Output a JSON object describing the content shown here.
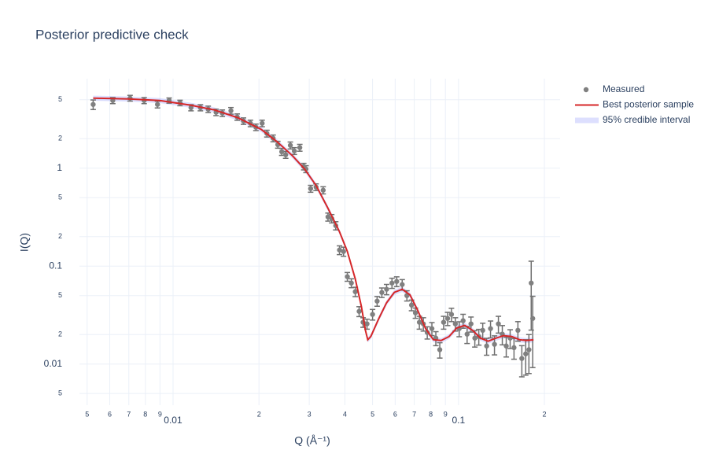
{
  "chart_data": {
    "type": "scatter",
    "title": "Posterior predictive check",
    "xlabel": "Q (Å⁻¹)",
    "ylabel": "I(Q)",
    "xscale": "log",
    "yscale": "log",
    "grid": true,
    "legend": "right",
    "xlim": [
      0.0047,
      0.227
    ],
    "ylim": [
      0.0038,
      8.2
    ],
    "xticks": [
      {
        "value": 0.005,
        "label": "5"
      },
      {
        "value": 0.006,
        "label": "6"
      },
      {
        "value": 0.007,
        "label": "7"
      },
      {
        "value": 0.008,
        "label": "8"
      },
      {
        "value": 0.009,
        "label": "9"
      },
      0.01,
      {
        "value": 0.02,
        "label": "2"
      },
      {
        "value": 0.03,
        "label": "3"
      },
      {
        "value": 0.04,
        "label": "4"
      },
      {
        "value": 0.05,
        "label": "5"
      },
      {
        "value": 0.06,
        "label": "6"
      },
      {
        "value": 0.07,
        "label": "7"
      },
      {
        "value": 0.08,
        "label": "8"
      },
      {
        "value": 0.09,
        "label": "9"
      },
      0.1,
      {
        "value": 0.2,
        "label": "2"
      }
    ],
    "yticks": [
      {
        "value": 0.005,
        "label": "5"
      },
      0.01,
      {
        "value": 0.02,
        "label": "2"
      },
      {
        "value": 0.05,
        "label": "5"
      },
      0.1,
      {
        "value": 0.2,
        "label": "2"
      },
      {
        "value": 0.5,
        "label": "5"
      },
      1,
      {
        "value": 2,
        "label": "2"
      },
      {
        "value": 5,
        "label": "5"
      }
    ],
    "series": [
      {
        "name": "Measured",
        "type": "scatter",
        "color": "#808080",
        "x": [
          0.00525,
          0.00615,
          0.00707,
          0.00792,
          0.00882,
          0.00969,
          0.01058,
          0.01156,
          0.01247,
          0.01328,
          0.01415,
          0.01488,
          0.01595,
          0.01678,
          0.01765,
          0.01867,
          0.01951,
          0.02052,
          0.02132,
          0.02242,
          0.02328,
          0.02403,
          0.02481,
          0.02576,
          0.0266,
          0.0278,
          0.0287,
          0.02922,
          0.03034,
          0.0317,
          0.03357,
          0.0349,
          0.03597,
          0.03715,
          0.0383,
          0.03956,
          0.0408,
          0.04214,
          0.0435,
          0.04487,
          0.04632,
          0.04781,
          0.05,
          0.05188,
          0.05389,
          0.056,
          0.05848,
          0.06076,
          0.0635,
          0.06596,
          0.06848,
          0.07066,
          0.07295,
          0.07531,
          0.07774,
          0.0807,
          0.0833,
          0.086,
          0.0887,
          0.0916,
          0.0945,
          0.0975,
          0.1006,
          0.1038,
          0.1072,
          0.1106,
          0.1141,
          0.1178,
          0.1216,
          0.1255,
          0.1295,
          0.1337,
          0.138,
          0.1424,
          0.147,
          0.1517,
          0.1565,
          0.1615,
          0.1667,
          0.172,
          0.1765,
          0.1798,
          0.182
        ],
        "values": [
          4.47,
          4.91,
          5.19,
          4.91,
          4.47,
          4.91,
          4.64,
          4.15,
          4.15,
          4.0,
          3.72,
          3.65,
          3.86,
          3.33,
          3.03,
          2.87,
          2.62,
          2.87,
          2.26,
          2.02,
          1.74,
          1.47,
          1.37,
          1.71,
          1.5,
          1.62,
          1.04,
          0.98,
          0.618,
          0.641,
          0.596,
          0.318,
          0.306,
          0.259,
          0.146,
          0.141,
          0.078,
          0.0672,
          0.0548,
          0.0345,
          0.0267,
          0.0257,
          0.0321,
          0.0439,
          0.0538,
          0.058,
          0.0672,
          0.0697,
          0.0648,
          0.05,
          0.04,
          0.0333,
          0.0267,
          0.0257,
          0.021,
          0.023,
          0.0184,
          0.014,
          0.0267,
          0.0292,
          0.0321,
          0.0257,
          0.023,
          0.0277,
          0.0202,
          0.0257,
          0.0184,
          0.0191,
          0.0221,
          0.0153,
          0.023,
          0.0159,
          0.0257,
          0.0202,
          0.0153,
          0.0184,
          0.0147,
          0.0221,
          0.0114,
          0.0127,
          0.014,
          0.0672,
          0.0292
        ],
        "error": [
          0.5,
          0.35,
          0.35,
          0.35,
          0.35,
          0.3,
          0.3,
          0.3,
          0.3,
          0.3,
          0.28,
          0.28,
          0.3,
          0.25,
          0.23,
          0.22,
          0.2,
          0.22,
          0.18,
          0.16,
          0.14,
          0.12,
          0.11,
          0.14,
          0.12,
          0.13,
          0.08,
          0.08,
          0.05,
          0.05,
          0.05,
          0.03,
          0.03,
          0.025,
          0.015,
          0.015,
          0.008,
          0.007,
          0.006,
          0.004,
          0.003,
          0.003,
          0.004,
          0.005,
          0.006,
          0.007,
          0.008,
          0.008,
          0.008,
          0.006,
          0.005,
          0.004,
          0.004,
          0.004,
          0.003,
          0.0035,
          0.003,
          0.0025,
          0.004,
          0.0045,
          0.005,
          0.004,
          0.004,
          0.0045,
          0.004,
          0.0045,
          0.0035,
          0.0035,
          0.004,
          0.003,
          0.0045,
          0.0035,
          0.005,
          0.0045,
          0.0035,
          0.004,
          0.0035,
          0.005,
          0.004,
          0.005,
          0.006,
          0.045,
          0.02
        ]
      },
      {
        "name": "Best posterior sample",
        "type": "line",
        "color": "#d62728",
        "x": [
          0.00525,
          0.00698,
          0.00898,
          0.01156,
          0.01397,
          0.01688,
          0.0204,
          0.0231,
          0.0262,
          0.0289,
          0.0317,
          0.0349,
          0.0383,
          0.0408,
          0.0435,
          0.0457,
          0.0472,
          0.0481,
          0.0493,
          0.0526,
          0.056,
          0.0596,
          0.0635,
          0.0676,
          0.072,
          0.0767,
          0.0817,
          0.087,
          0.0927,
          0.0987,
          0.1052,
          0.112,
          0.1194,
          0.127,
          0.1355,
          0.144,
          0.1537,
          0.1637,
          0.1732,
          0.1832
        ],
        "values": [
          5.19,
          5.09,
          4.91,
          4.39,
          3.93,
          3.27,
          2.48,
          1.87,
          1.34,
          0.98,
          0.666,
          0.389,
          0.224,
          0.141,
          0.0738,
          0.0386,
          0.0221,
          0.0177,
          0.0191,
          0.0292,
          0.0423,
          0.0539,
          0.058,
          0.0509,
          0.0352,
          0.023,
          0.0177,
          0.0174,
          0.0191,
          0.0234,
          0.0248,
          0.0221,
          0.0184,
          0.0171,
          0.0184,
          0.0195,
          0.0191,
          0.0177,
          0.0174,
          0.0177
        ]
      },
      {
        "name": "95% credible interval",
        "type": "band",
        "color": "rgba(99,110,250,0.22)",
        "upper": [
          5.5,
          5.4,
          5.2,
          4.65,
          4.17,
          3.47,
          2.63,
          1.98,
          1.42,
          1.04,
          0.706,
          0.412,
          0.237,
          0.149,
          0.0782,
          0.0409,
          0.0234,
          0.0188,
          0.0202,
          0.031,
          0.0448,
          0.0571,
          0.0615,
          0.054,
          0.0373,
          0.0244,
          0.0188,
          0.0184,
          0.0202,
          0.0248,
          0.0263,
          0.0234,
          0.0195,
          0.0181,
          0.0195,
          0.0207,
          0.0202,
          0.0188,
          0.0184,
          0.0188
        ],
        "lower": [
          4.88,
          4.78,
          4.62,
          4.13,
          3.69,
          3.07,
          2.33,
          1.76,
          1.26,
          0.921,
          0.626,
          0.366,
          0.211,
          0.133,
          0.0694,
          0.0363,
          0.0208,
          0.0166,
          0.018,
          0.0274,
          0.0398,
          0.0507,
          0.0545,
          0.0478,
          0.0331,
          0.0216,
          0.0166,
          0.0164,
          0.018,
          0.022,
          0.0233,
          0.0208,
          0.0173,
          0.0161,
          0.0173,
          0.0183,
          0.018,
          0.0166,
          0.0164,
          0.0166
        ]
      }
    ]
  }
}
